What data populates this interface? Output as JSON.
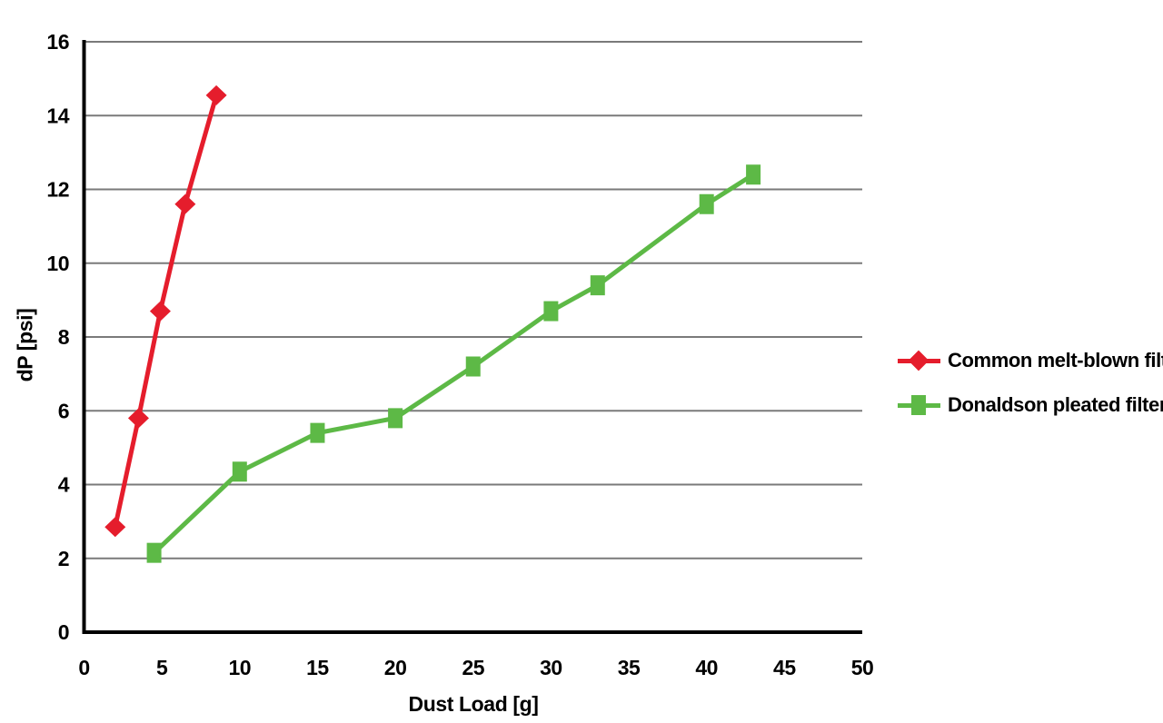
{
  "chart_data": {
    "type": "line",
    "title": "",
    "xlabel": "Dust Load [g]",
    "ylabel": "dP [psi]",
    "xlim": [
      0,
      50
    ],
    "ylim": [
      0,
      16
    ],
    "x_ticks": [
      "0",
      "5",
      "10",
      "15",
      "20",
      "25",
      "30",
      "35",
      "40",
      "45",
      "50"
    ],
    "y_ticks": [
      "0",
      "2",
      "4",
      "6",
      "8",
      "10",
      "12",
      "14",
      "16"
    ],
    "grid": "horizontal",
    "legend_position": "right-middle",
    "series": [
      {
        "name": "Common melt-blown filter",
        "color": "#e51d2c",
        "marker": "diamond",
        "x": [
          2,
          3.5,
          4.9,
          6.5,
          8.5
        ],
        "y": [
          2.85,
          5.8,
          8.7,
          11.6,
          14.55
        ]
      },
      {
        "name": "Donaldson pleated filter",
        "color": "#5db946",
        "marker": "square",
        "x": [
          4.5,
          10,
          15,
          20,
          25,
          30,
          33,
          40,
          43
        ],
        "y": [
          2.15,
          4.35,
          5.4,
          5.8,
          7.2,
          8.7,
          9.4,
          11.6,
          12.4
        ]
      }
    ]
  },
  "colors": {
    "background": "#ffffff",
    "axis": "#000000",
    "gridline": "#7a7a7a",
    "text": "#000000"
  }
}
